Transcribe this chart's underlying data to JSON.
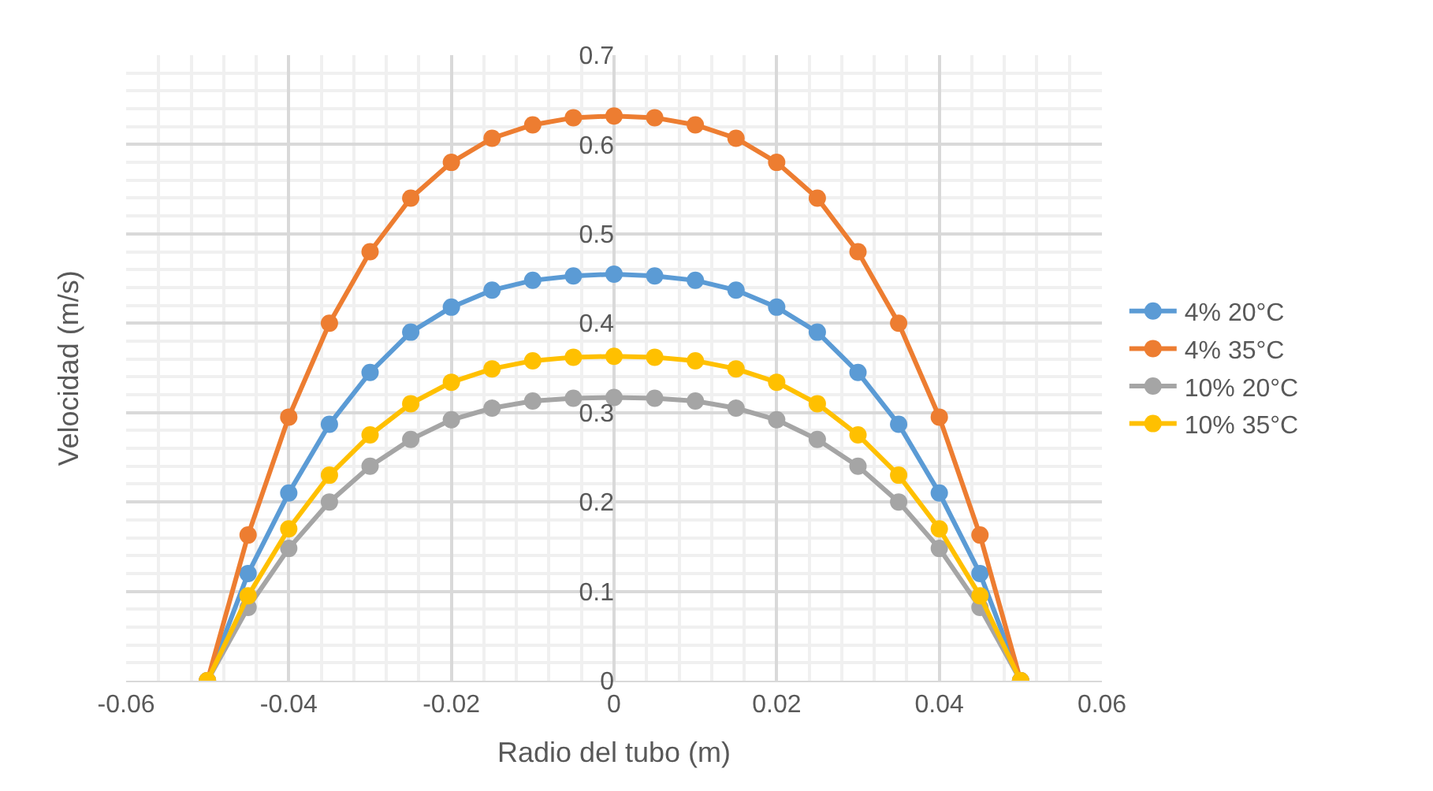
{
  "chart_data": {
    "type": "line",
    "xlabel": "Radio del tubo (m)",
    "ylabel": "Velocidad (m/s)",
    "x": [
      -0.05,
      -0.045,
      -0.04,
      -0.035,
      -0.03,
      -0.025,
      -0.02,
      -0.015,
      -0.01,
      -0.005,
      0,
      0.005,
      0.01,
      0.015,
      0.02,
      0.025,
      0.03,
      0.035,
      0.04,
      0.045,
      0.05
    ],
    "series": [
      {
        "name": "4% 20°C",
        "color": "#5b9bd5",
        "values": [
          0,
          0.12,
          0.21,
          0.287,
          0.345,
          0.39,
          0.418,
          0.437,
          0.448,
          0.453,
          0.455,
          0.453,
          0.448,
          0.437,
          0.418,
          0.39,
          0.345,
          0.287,
          0.21,
          0.12,
          0
        ]
      },
      {
        "name": "4% 35°C",
        "color": "#ed7d31",
        "values": [
          0,
          0.163,
          0.295,
          0.4,
          0.48,
          0.54,
          0.58,
          0.607,
          0.622,
          0.63,
          0.632,
          0.63,
          0.622,
          0.607,
          0.58,
          0.54,
          0.48,
          0.4,
          0.295,
          0.163,
          0
        ]
      },
      {
        "name": "10% 20°C",
        "color": "#a5a5a5",
        "values": [
          0,
          0.082,
          0.148,
          0.2,
          0.24,
          0.27,
          0.292,
          0.305,
          0.313,
          0.316,
          0.317,
          0.316,
          0.313,
          0.305,
          0.292,
          0.27,
          0.24,
          0.2,
          0.148,
          0.082,
          0
        ]
      },
      {
        "name": "10% 35°C",
        "color": "#ffc000",
        "values": [
          0,
          0.095,
          0.17,
          0.23,
          0.275,
          0.31,
          0.334,
          0.349,
          0.358,
          0.362,
          0.363,
          0.362,
          0.358,
          0.349,
          0.334,
          0.31,
          0.275,
          0.23,
          0.17,
          0.095,
          0
        ]
      }
    ],
    "xlim": [
      -0.06,
      0.06
    ],
    "xticks": [
      -0.06,
      -0.04,
      -0.02,
      0,
      0.02,
      0.04,
      0.06
    ],
    "ylim": [
      0,
      0.7
    ],
    "yticks": [
      0,
      0.1,
      0.2,
      0.3,
      0.4,
      0.5,
      0.6,
      0.7
    ],
    "grid": true,
    "legend": "right",
    "marker": "circle",
    "line_style": "solid"
  }
}
